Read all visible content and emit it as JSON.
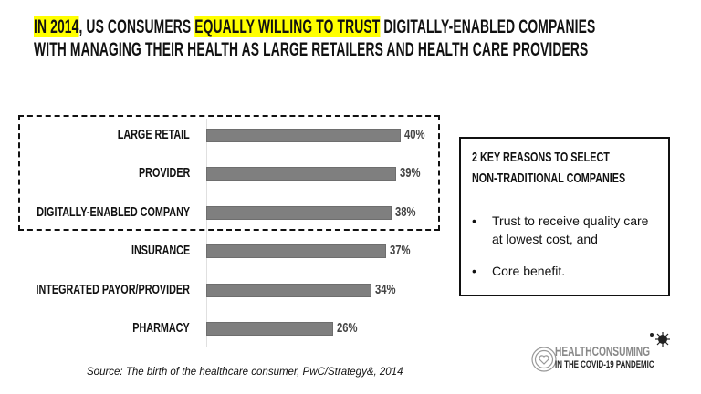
{
  "title": {
    "line1": {
      "highlight1": "IN 2014",
      "text1": ", US CONSUMERS ",
      "highlight2": "EQUALLY WILLING TO TRUST",
      "text2": " DIGITALLY-ENABLED COMPANIES"
    },
    "line2": "WITH MANAGING THEIR HEALTH AS LARGE RETAILERS AND HEALTH CARE PROVIDERS",
    "highlight_color": "#ffff00"
  },
  "chart_data": {
    "type": "bar",
    "orientation": "horizontal",
    "categories": [
      "LARGE RETAIL",
      "PROVIDER",
      "DIGITALLY-ENABLED COMPANY",
      "INSURANCE",
      "INTEGRATED PAYOR/PROVIDER",
      "PHARMACY"
    ],
    "values": [
      40,
      39,
      38,
      37,
      34,
      26
    ],
    "value_labels": [
      "40%",
      "39%",
      "38%",
      "37%",
      "34%",
      "26%"
    ],
    "unit": "%",
    "bar_color": "#7f7f7f",
    "highlighted_categories": [
      "LARGE RETAIL",
      "PROVIDER",
      "DIGITALLY-ENABLED COMPANY"
    ],
    "grid": false
  },
  "reasons": {
    "title_line1": "2 KEY REASONS TO SELECT",
    "title_line2": "NON-TRADITIONAL COMPANIES",
    "bullets": [
      "Trust to receive quality care at lowest cost, and",
      "Core benefit."
    ]
  },
  "source": "Source:  The birth of the healthcare consumer, PwC/Strategy&,  2014",
  "logo": {
    "line1": "HEALTHCONSUMING",
    "line2": "IN THE COVID-19 PANDEMIC"
  }
}
